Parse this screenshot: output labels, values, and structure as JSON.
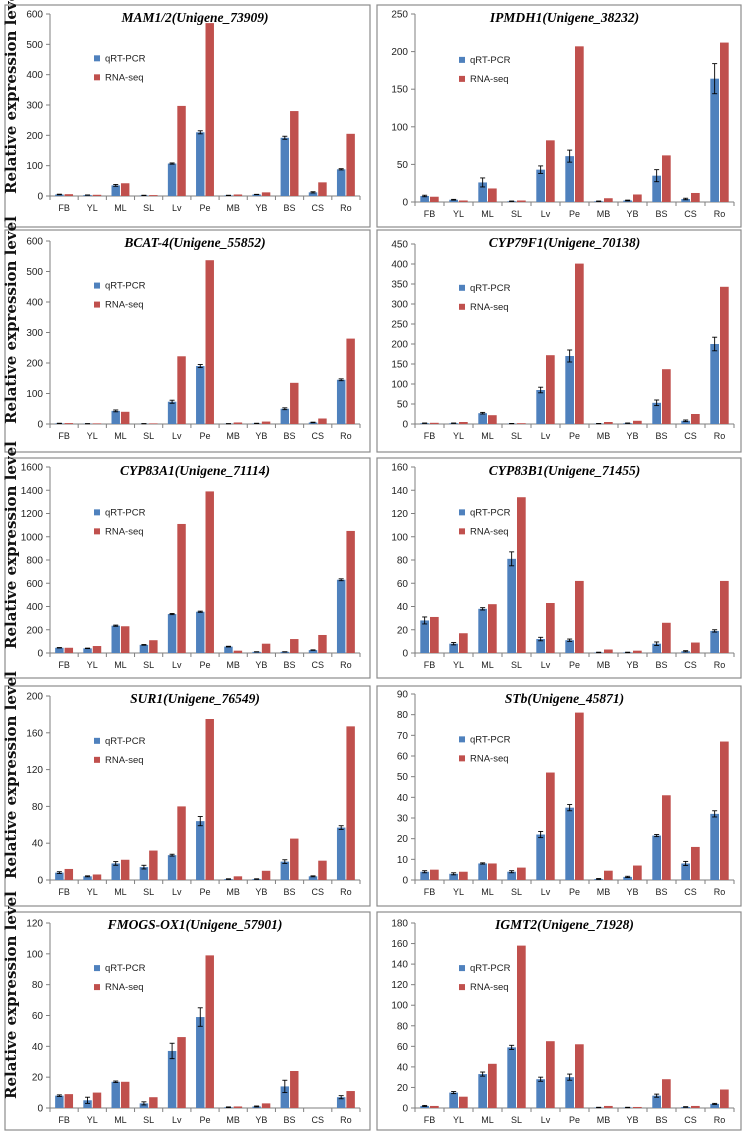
{
  "figure": {
    "ylabel": "Relative expression level",
    "categories": [
      "FB",
      "YL",
      "ML",
      "SL",
      "Lv",
      "Pe",
      "MB",
      "YB",
      "BS",
      "CS",
      "Ro"
    ],
    "legend": [
      "qRT-PCR",
      "RNA-seq"
    ],
    "colors": {
      "qrt": "#4f81bd",
      "rna": "#c0504d",
      "frame": "#8c8c8c",
      "axis": "#7f7f7f",
      "text": "#222222"
    }
  },
  "chart_data": [
    {
      "type": "bar",
      "title": "MAM1/2(Unigene_73909)",
      "ylim": [
        0,
        600
      ],
      "ticks": [
        0,
        100,
        200,
        300,
        400,
        500,
        600
      ],
      "series": [
        {
          "name": "qRT-PCR",
          "values": [
            5,
            3,
            35,
            2,
            107,
            210,
            2,
            5,
            192,
            12,
            88
          ],
          "errors": [
            1,
            0.5,
            3,
            0.5,
            2,
            5,
            0.5,
            0.5,
            5,
            2,
            2
          ]
        },
        {
          "name": "RNA-seq",
          "values": [
            6,
            4,
            42,
            3,
            297,
            570,
            5,
            12,
            280,
            45,
            205
          ]
        }
      ]
    },
    {
      "type": "bar",
      "title": "IPMDH1(Unigene_38232)",
      "ylim": [
        0,
        250
      ],
      "ticks": [
        0,
        50,
        100,
        150,
        200,
        250
      ],
      "series": [
        {
          "name": "qRT-PCR",
          "values": [
            8,
            3,
            26,
            1,
            43,
            61,
            1,
            2,
            35,
            4,
            164
          ],
          "errors": [
            1,
            0.5,
            6,
            0.3,
            5,
            8,
            0.3,
            0.5,
            8,
            1,
            20
          ]
        },
        {
          "name": "RNA-seq",
          "values": [
            7,
            2,
            18,
            2,
            82,
            207,
            5,
            10,
            62,
            12,
            212
          ]
        }
      ]
    },
    {
      "type": "bar",
      "title": "BCAT-4(Unigene_55852)",
      "ylim": [
        0,
        600
      ],
      "ticks": [
        0,
        100,
        200,
        300,
        400,
        500,
        600
      ],
      "series": [
        {
          "name": "qRT-PCR",
          "values": [
            2,
            1,
            43,
            1,
            73,
            190,
            1,
            2,
            50,
            5,
            145
          ],
          "errors": [
            0.5,
            0.3,
            3,
            0.3,
            5,
            5,
            0.3,
            0.5,
            3,
            1,
            3
          ]
        },
        {
          "name": "RNA-seq",
          "values": [
            3,
            2,
            40,
            2,
            222,
            537,
            5,
            8,
            135,
            18,
            280
          ]
        }
      ]
    },
    {
      "type": "bar",
      "title": "CYP79F1(Unigene_70138)",
      "ylim": [
        0,
        450
      ],
      "ticks": [
        0,
        50,
        100,
        150,
        200,
        250,
        300,
        350,
        400,
        450
      ],
      "series": [
        {
          "name": "qRT-PCR",
          "values": [
            2,
            2,
            27,
            1,
            85,
            170,
            1,
            2,
            53,
            8,
            200
          ],
          "errors": [
            0.5,
            0.5,
            2,
            0.3,
            7,
            15,
            0.3,
            0.5,
            7,
            2,
            17
          ]
        },
        {
          "name": "RNA-seq",
          "values": [
            3,
            5,
            22,
            2,
            172,
            401,
            5,
            8,
            137,
            25,
            343
          ]
        }
      ]
    },
    {
      "type": "bar",
      "title": "CYP83A1(Unigene_71114)",
      "ylim": [
        0,
        1600
      ],
      "ticks": [
        0,
        200,
        400,
        600,
        800,
        1000,
        1200,
        1400,
        1600
      ],
      "series": [
        {
          "name": "qRT-PCR",
          "values": [
            45,
            40,
            235,
            70,
            335,
            355,
            55,
            10,
            10,
            25,
            630
          ],
          "errors": [
            2,
            2,
            5,
            3,
            5,
            5,
            3,
            1,
            1,
            2,
            8
          ]
        },
        {
          "name": "RNA-seq",
          "values": [
            45,
            60,
            230,
            110,
            1110,
            1390,
            20,
            80,
            120,
            155,
            1050
          ]
        }
      ]
    },
    {
      "type": "bar",
      "title": "CYP83B1(Unigene_71455)",
      "ylim": [
        0,
        160
      ],
      "ticks": [
        0,
        20,
        40,
        60,
        80,
        100,
        120,
        140,
        160
      ],
      "series": [
        {
          "name": "qRT-PCR",
          "values": [
            28,
            8,
            38,
            81,
            12,
            11,
            0.5,
            0.5,
            8,
            1.5,
            19
          ],
          "errors": [
            3,
            1,
            1,
            6,
            1.5,
            1,
            0.2,
            0.2,
            1.5,
            0.5,
            1
          ]
        },
        {
          "name": "RNA-seq",
          "values": [
            31,
            17,
            42,
            134,
            43,
            62,
            3,
            2,
            26,
            9,
            62
          ]
        }
      ]
    },
    {
      "type": "bar",
      "title": "SUR1(Unigene_76549)",
      "ylim": [
        0,
        200
      ],
      "ticks": [
        0,
        40,
        80,
        120,
        160,
        200
      ],
      "series": [
        {
          "name": "qRT-PCR",
          "values": [
            8,
            4,
            18,
            14,
            27,
            64,
            1,
            1,
            20,
            4,
            57
          ],
          "errors": [
            1,
            0.5,
            2,
            2,
            1,
            5,
            0.3,
            0.3,
            2,
            0.5,
            2
          ]
        },
        {
          "name": "RNA-seq",
          "values": [
            12,
            6,
            22,
            32,
            80,
            175,
            4,
            10,
            45,
            21,
            167
          ]
        }
      ]
    },
    {
      "type": "bar",
      "title": "STb(Unigene_45871)",
      "ylim": [
        0,
        90
      ],
      "ticks": [
        0,
        10,
        20,
        30,
        40,
        50,
        60,
        70,
        80,
        90
      ],
      "series": [
        {
          "name": "qRT-PCR",
          "values": [
            4,
            3,
            8,
            4,
            22,
            35,
            0.5,
            1.5,
            21.5,
            8,
            32
          ],
          "errors": [
            0.5,
            0.5,
            0.3,
            0.5,
            1.5,
            1.5,
            0.2,
            0.3,
            0.5,
            1,
            1.5
          ]
        },
        {
          "name": "RNA-seq",
          "values": [
            5,
            4,
            8,
            6,
            52,
            81,
            4.5,
            7,
            41,
            16,
            67
          ]
        }
      ]
    },
    {
      "type": "bar",
      "title": "FMOGS-OX1(Unigene_57901)",
      "ylim": [
        0,
        120
      ],
      "ticks": [
        0,
        20,
        40,
        60,
        80,
        100,
        120
      ],
      "series": [
        {
          "name": "qRT-PCR",
          "values": [
            8,
            5,
            17,
            3,
            37,
            59,
            0.5,
            1,
            14,
            0,
            7
          ],
          "errors": [
            0.5,
            2,
            0.5,
            1,
            5,
            6,
            0.2,
            0.3,
            4,
            0,
            1
          ]
        },
        {
          "name": "RNA-seq",
          "values": [
            9,
            10,
            17,
            7,
            46,
            99,
            1,
            3,
            24,
            0,
            11
          ]
        }
      ]
    },
    {
      "type": "bar",
      "title": "IGMT2(Unigene_71928)",
      "ylim": [
        0,
        180
      ],
      "ticks": [
        0,
        20,
        40,
        60,
        80,
        100,
        120,
        140,
        160,
        180
      ],
      "series": [
        {
          "name": "qRT-PCR",
          "values": [
            2,
            15,
            33,
            59,
            28,
            30,
            0.5,
            0.5,
            12,
            1,
            4
          ],
          "errors": [
            0.5,
            1,
            2,
            2,
            2,
            3,
            0.2,
            0.2,
            1.5,
            0.3,
            0.5
          ]
        },
        {
          "name": "RNA-seq",
          "values": [
            2,
            11,
            43,
            158,
            65,
            62,
            2,
            1,
            28,
            2,
            18
          ]
        }
      ]
    }
  ]
}
